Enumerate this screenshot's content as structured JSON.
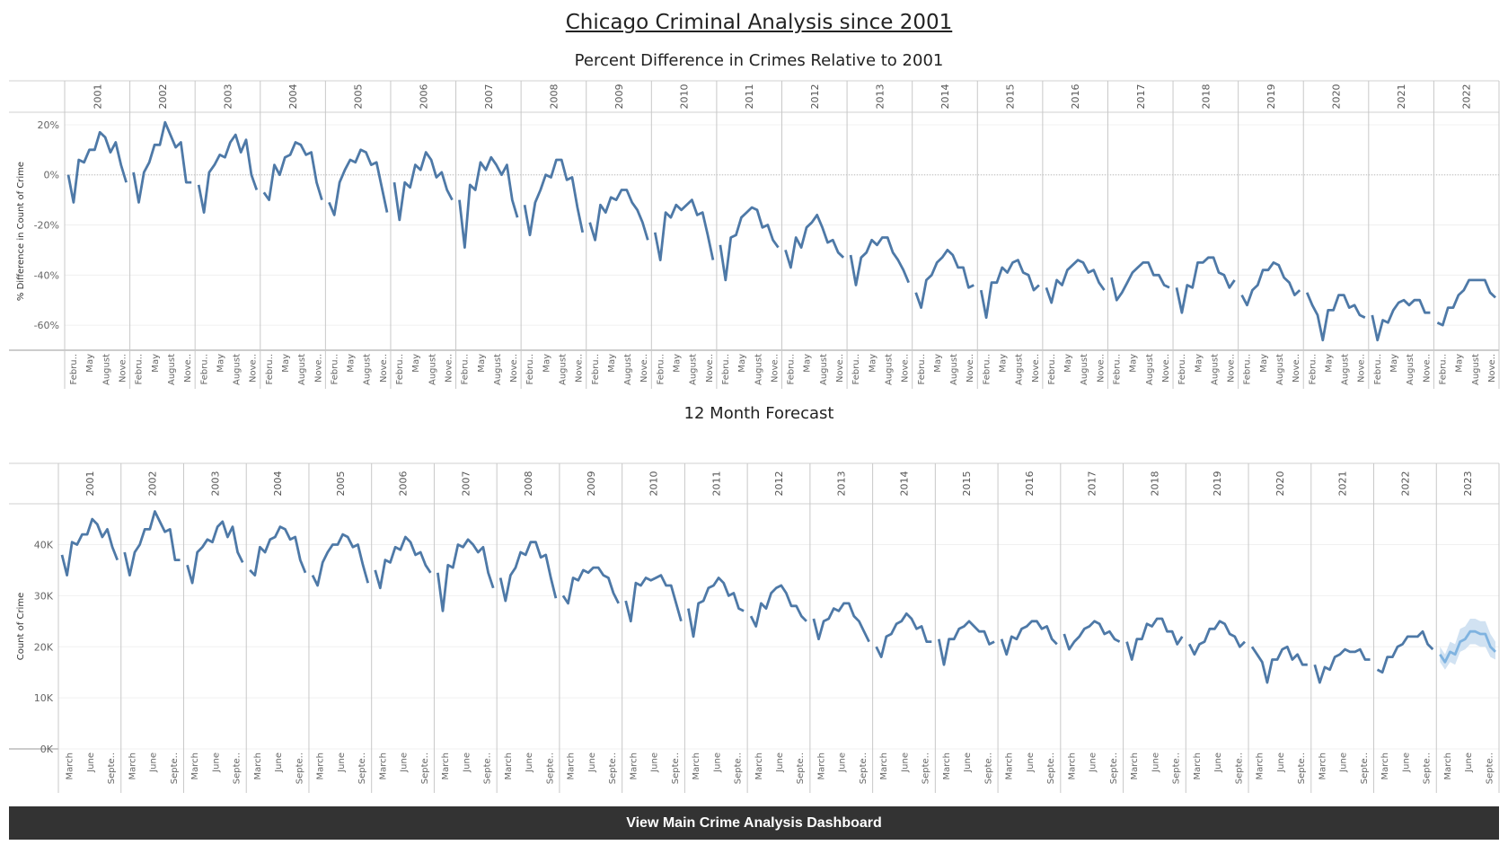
{
  "page": {
    "title": "Chicago Criminal Analysis since 2001",
    "button_label": "View Main Crime Analysis Dashboard"
  },
  "colors": {
    "line": "#4e79a7",
    "forecast": "#7fb3e0",
    "forecast_band": "#c6dbef",
    "header_bg": "#000000"
  },
  "chart_data": [
    {
      "type": "line",
      "title": "Percent Difference in Crimes Relative to 2001",
      "ylabel": "% Difference in Count of Crime",
      "ylim": [
        -70,
        25
      ],
      "y_ticks": [
        20,
        0,
        -20,
        -40,
        -60
      ],
      "y_tick_labels": [
        "20%",
        "0%",
        "-20%",
        "-40%",
        "-60%"
      ],
      "zero_line": true,
      "columns": [
        "2001",
        "2002",
        "2003",
        "2004",
        "2005",
        "2006",
        "2007",
        "2008",
        "2009",
        "2010",
        "2011",
        "2012",
        "2013",
        "2014",
        "2015",
        "2016",
        "2017",
        "2018",
        "2019",
        "2020",
        "2021",
        "2022"
      ],
      "month_ticks": [
        "Febru..",
        "May",
        "August",
        "Nove.."
      ],
      "series": [
        {
          "values": [
            [
              0,
              -11,
              6,
              5,
              10,
              10,
              17,
              15,
              9,
              13,
              4,
              -3
            ],
            [
              1,
              -11,
              1,
              5,
              12,
              12,
              21,
              16,
              11,
              13,
              -3,
              -3
            ],
            [
              -4,
              -15,
              1,
              4,
              8,
              7,
              13,
              16,
              9,
              14,
              0,
              -6
            ],
            [
              -7,
              -10,
              4,
              0,
              7,
              8,
              13,
              12,
              8,
              9,
              -3,
              -10
            ],
            [
              -11,
              -16,
              -3,
              2,
              6,
              5,
              10,
              9,
              4,
              5,
              -5,
              -15
            ],
            [
              -3,
              -18,
              -3,
              -5,
              4,
              2,
              9,
              6,
              -1,
              1,
              -6,
              -10
            ],
            [
              -10,
              -29,
              -4,
              -6,
              5,
              2,
              7,
              4,
              0,
              4,
              -10,
              -17
            ],
            [
              -12,
              -24,
              -11,
              -6,
              0,
              -1,
              6,
              6,
              -2,
              -1,
              -13,
              -23
            ],
            [
              -19,
              -26,
              -12,
              -15,
              -9,
              -10,
              -6,
              -6,
              -11,
              -14,
              -19,
              -26
            ],
            [
              -23,
              -34,
              -15,
              -17,
              -12,
              -14,
              -12,
              -10,
              -16,
              -15,
              -24,
              -34
            ],
            [
              -28,
              -42,
              -25,
              -24,
              -17,
              -15,
              -13,
              -14,
              -21,
              -20,
              -26,
              -29
            ],
            [
              -30,
              -37,
              -25,
              -29,
              -21,
              -19,
              -16,
              -21,
              -27,
              -26,
              -31,
              -33
            ],
            [
              -32,
              -44,
              -33,
              -31,
              -26,
              -28,
              -25,
              -25,
              -31,
              -34,
              -38,
              -43
            ],
            [
              -47,
              -53,
              -42,
              -40,
              -35,
              -33,
              -30,
              -32,
              -37,
              -37,
              -45,
              -44
            ],
            [
              -46,
              -57,
              -43,
              -43,
              -37,
              -39,
              -35,
              -34,
              -39,
              -40,
              -46,
              -44
            ],
            [
              -45,
              -51,
              -42,
              -44,
              -38,
              -36,
              -34,
              -35,
              -39,
              -38,
              -43,
              -46
            ],
            [
              -41,
              -50,
              -47,
              -43,
              -39,
              -37,
              -35,
              -35,
              -40,
              -40,
              -44,
              -45
            ],
            [
              -45,
              -55,
              -44,
              -45,
              -35,
              -35,
              -33,
              -33,
              -39,
              -40,
              -45,
              -42
            ],
            [
              -48,
              -52,
              -46,
              -44,
              -38,
              -38,
              -35,
              -36,
              -41,
              -43,
              -48,
              -46
            ],
            [
              -47,
              -52,
              -56,
              -66,
              -54,
              -54,
              -48,
              -48,
              -53,
              -52,
              -56,
              -57
            ],
            [
              -56,
              -66,
              -58,
              -59,
              -54,
              -51,
              -50,
              -52,
              -50,
              -50,
              -55,
              -55
            ],
            [
              -59,
              -60,
              -53,
              -53,
              -48,
              -46,
              -42,
              -42,
              -42,
              -42,
              -47,
              -49
            ]
          ]
        }
      ]
    },
    {
      "type": "line",
      "title": "12 Month Forecast",
      "ylabel": "Count of Crime",
      "ylim": [
        0,
        48000
      ],
      "y_ticks": [
        40000,
        30000,
        20000,
        10000,
        0
      ],
      "y_tick_labels": [
        "40K",
        "30K",
        "20K",
        "10K",
        "0K"
      ],
      "zero_line": false,
      "columns": [
        "2001",
        "2002",
        "2003",
        "2004",
        "2005",
        "2006",
        "2007",
        "2008",
        "2009",
        "2010",
        "2011",
        "2012",
        "2013",
        "2014",
        "2015",
        "2016",
        "2017",
        "2018",
        "2019",
        "2020",
        "2021",
        "2022",
        "2023"
      ],
      "month_ticks": [
        "March",
        "June",
        "Septe.."
      ],
      "series": [
        {
          "values": [
            [
              38000,
              34000,
              40500,
              40000,
              42000,
              42000,
              45000,
              44000,
              41500,
              43000,
              39500,
              37000
            ],
            [
              38500,
              34000,
              38500,
              40000,
              43000,
              43000,
              46500,
              44500,
              42500,
              43000,
              37000,
              37000
            ],
            [
              36000,
              32500,
              38500,
              39500,
              41000,
              40500,
              43500,
              44500,
              41500,
              43500,
              38500,
              36500
            ],
            [
              35000,
              34000,
              39500,
              38500,
              41000,
              41500,
              43500,
              43000,
              41000,
              41500,
              37000,
              34500
            ],
            [
              34000,
              32000,
              36500,
              38500,
              40000,
              40000,
              42000,
              41500,
              39500,
              40000,
              36000,
              32500
            ],
            [
              35000,
              31500,
              37000,
              36500,
              39500,
              39000,
              41500,
              40500,
              38000,
              38500,
              36000,
              34500
            ],
            [
              34500,
              27000,
              36000,
              35500,
              40000,
              39500,
              41000,
              40000,
              38500,
              39500,
              34500,
              31500
            ],
            [
              33500,
              29000,
              34000,
              35500,
              38500,
              38000,
              40500,
              40500,
              37500,
              38000,
              33500,
              29500
            ],
            [
              30000,
              28500,
              33500,
              33000,
              35000,
              34500,
              35500,
              35500,
              34000,
              33500,
              30500,
              28500
            ],
            [
              29000,
              25000,
              32500,
              32000,
              33500,
              33000,
              33500,
              34000,
              32000,
              32000,
              28500,
              25000
            ],
            [
              27500,
              22000,
              28500,
              29000,
              31500,
              32000,
              33500,
              32500,
              30000,
              30500,
              27500,
              27000
            ],
            [
              26000,
              24000,
              28500,
              27500,
              30500,
              31500,
              32000,
              30500,
              28000,
              28000,
              26000,
              25000
            ],
            [
              25500,
              21500,
              25000,
              25500,
              27500,
              27000,
              28500,
              28500,
              26000,
              25000,
              23000,
              21000
            ],
            [
              20000,
              18000,
              22000,
              22500,
              24500,
              25000,
              26500,
              25500,
              23500,
              24000,
              21000,
              21000
            ],
            [
              21500,
              16500,
              21500,
              21500,
              23500,
              24000,
              25000,
              24000,
              23000,
              23000,
              20500,
              21000
            ],
            [
              21500,
              18500,
              22000,
              21500,
              23500,
              24000,
              25000,
              25000,
              23500,
              24000,
              21500,
              20500
            ],
            [
              22500,
              19500,
              21000,
              22000,
              23500,
              24000,
              25000,
              24500,
              22500,
              23000,
              21500,
              21000
            ],
            [
              21000,
              17500,
              21500,
              21500,
              24500,
              24000,
              25500,
              25500,
              23000,
              23000,
              20500,
              22000
            ],
            [
              20500,
              18500,
              20500,
              21000,
              23500,
              23500,
              25000,
              24500,
              22500,
              22000,
              20000,
              21000
            ],
            [
              20000,
              18500,
              17000,
              13000,
              17500,
              17500,
              19500,
              20000,
              17500,
              18500,
              16500,
              16500
            ],
            [
              16500,
              13000,
              16000,
              15500,
              18000,
              18500,
              19500,
              19000,
              19000,
              19500,
              17500,
              17500
            ],
            [
              15500,
              15000,
              18000,
              18000,
              20000,
              20500,
              22000,
              22000,
              22000,
              23000,
              20500,
              19500
            ]
          ]
        },
        {
          "name": "",
          "forecast": true,
          "column": "2023",
          "values": [
            18500,
            17000,
            19000,
            18500,
            21000,
            21500,
            23000,
            23000,
            22500,
            22500,
            20000,
            19000
          ],
          "band_low": [
            17000,
            15500,
            17000,
            16500,
            19000,
            19500,
            20500,
            20500,
            20000,
            20000,
            18000,
            17500
          ],
          "band_high": [
            20000,
            18500,
            21000,
            20500,
            23500,
            24000,
            25500,
            25500,
            25000,
            25000,
            22500,
            21000
          ]
        }
      ]
    }
  ]
}
